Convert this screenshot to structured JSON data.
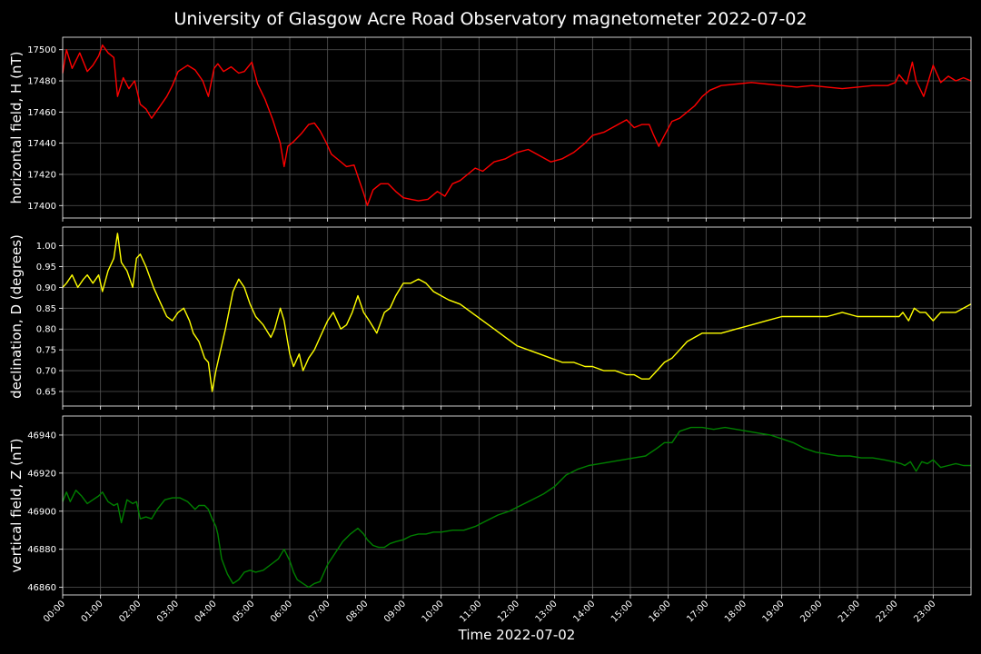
{
  "title": "University of Glasgow Acre Road Observatory magnetometer 2022-07-02",
  "xlabel": "Time 2022-07-02",
  "colors": {
    "background": "#000000",
    "grid": "#555555",
    "H": "#ff0000",
    "D": "#ffff00",
    "Z": "#008000"
  },
  "chart_data": [
    {
      "type": "line",
      "ylabel": "horizontal field, H (nT)",
      "series": [
        {
          "color": "#ff0000",
          "x": [
            0,
            0.1,
            0.25,
            0.45,
            0.65,
            0.8,
            0.95,
            1.05,
            1.2,
            1.35,
            1.45,
            1.6,
            1.75,
            1.9,
            2.05,
            2.2,
            2.35,
            2.55,
            2.75,
            2.9,
            3.05,
            3.3,
            3.5,
            3.7,
            3.85,
            4.0,
            4.1,
            4.25,
            4.45,
            4.65,
            4.8,
            5.0,
            5.15,
            5.35,
            5.55,
            5.75,
            5.85,
            5.95,
            6.1,
            6.3,
            6.5,
            6.65,
            6.8,
            6.95,
            7.1,
            7.3,
            7.5,
            7.7,
            7.85,
            7.95,
            8.05,
            8.2,
            8.4,
            8.6,
            8.8,
            9.0,
            9.2,
            9.4,
            9.65,
            9.9,
            10.1,
            10.3,
            10.5,
            10.7,
            10.9,
            11.1,
            11.4,
            11.7,
            12.0,
            12.3,
            12.6,
            12.9,
            13.2,
            13.5,
            13.8,
            14.0,
            14.3,
            14.6,
            14.9,
            15.1,
            15.3,
            15.5,
            15.6,
            15.75,
            15.9,
            16.1,
            16.3,
            16.5,
            16.7,
            16.9,
            17.1,
            17.4,
            17.8,
            18.2,
            18.6,
            19.0,
            19.4,
            19.8,
            20.2,
            20.6,
            21.0,
            21.4,
            21.8,
            22.0,
            22.1,
            22.3,
            22.45,
            22.55,
            22.75,
            22.85,
            23.0,
            23.2,
            23.4,
            23.6,
            23.8,
            24.0
          ],
          "y": [
            17485,
            17500,
            17488,
            17498,
            17486,
            17490,
            17496,
            17503,
            17498,
            17495,
            17470,
            17482,
            17475,
            17480,
            17465,
            17462,
            17456,
            17463,
            17470,
            17477,
            17486,
            17490,
            17487,
            17480,
            17470,
            17488,
            17491,
            17486,
            17489,
            17485,
            17486,
            17492,
            17478,
            17468,
            17455,
            17440,
            17425,
            17438,
            17441,
            17446,
            17452,
            17453,
            17448,
            17441,
            17433,
            17429,
            17425,
            17426,
            17415,
            17408,
            17400,
            17410,
            17414,
            17414,
            17409,
            17405,
            17404,
            17403,
            17404,
            17409,
            17406,
            17414,
            17416,
            17420,
            17424,
            17422,
            17428,
            17430,
            17434,
            17436,
            17432,
            17428,
            17430,
            17434,
            17440,
            17445,
            17447,
            17451,
            17455,
            17450,
            17452,
            17452,
            17446,
            17438,
            17445,
            17454,
            17456,
            17460,
            17464,
            17470,
            17474,
            17477,
            17478,
            17479,
            17478,
            17477,
            17476,
            17477,
            17476,
            17475,
            17476,
            17477,
            17477,
            17479,
            17484,
            17478,
            17492,
            17480,
            17470,
            17478,
            17490,
            17479,
            17483,
            17480,
            17482,
            17480
          ]
        }
      ],
      "ylim": [
        17392,
        17508
      ],
      "yticks": [
        "17400",
        "17420",
        "17440",
        "17460",
        "17480",
        "17500"
      ],
      "grid": true
    },
    {
      "type": "line",
      "ylabel": "declination, D (degrees)",
      "series": [
        {
          "color": "#ffff00",
          "x": [
            0,
            0.1,
            0.25,
            0.4,
            0.55,
            0.65,
            0.8,
            0.95,
            1.05,
            1.2,
            1.35,
            1.45,
            1.55,
            1.7,
            1.85,
            1.95,
            2.05,
            2.2,
            2.4,
            2.6,
            2.75,
            2.9,
            3.05,
            3.2,
            3.35,
            3.45,
            3.6,
            3.75,
            3.85,
            3.95,
            4.05,
            4.15,
            4.3,
            4.5,
            4.65,
            4.8,
            4.95,
            5.1,
            5.3,
            5.5,
            5.6,
            5.75,
            5.85,
            6.0,
            6.1,
            6.25,
            6.35,
            6.5,
            6.65,
            6.8,
            6.9,
            7.0,
            7.15,
            7.35,
            7.5,
            7.65,
            7.8,
            7.95,
            8.1,
            8.3,
            8.5,
            8.65,
            8.8,
            9.0,
            9.2,
            9.4,
            9.6,
            9.8,
            10.0,
            10.2,
            10.5,
            10.8,
            11.1,
            11.4,
            11.7,
            12.0,
            12.3,
            12.6,
            12.9,
            13.2,
            13.5,
            13.8,
            14.0,
            14.3,
            14.6,
            14.9,
            15.1,
            15.3,
            15.5,
            15.7,
            15.9,
            16.1,
            16.3,
            16.5,
            16.7,
            16.9,
            17.1,
            17.4,
            17.8,
            18.2,
            18.6,
            19.0,
            19.4,
            19.8,
            20.2,
            20.6,
            21.0,
            21.4,
            21.8,
            21.95,
            22.1,
            22.2,
            22.35,
            22.5,
            22.65,
            22.8,
            23.0,
            23.2,
            23.4,
            23.6,
            23.8,
            24.0
          ],
          "y": [
            0.9,
            0.91,
            0.93,
            0.9,
            0.92,
            0.93,
            0.91,
            0.93,
            0.89,
            0.94,
            0.97,
            1.03,
            0.96,
            0.94,
            0.9,
            0.97,
            0.98,
            0.95,
            0.9,
            0.86,
            0.83,
            0.82,
            0.84,
            0.85,
            0.82,
            0.79,
            0.77,
            0.73,
            0.72,
            0.65,
            0.7,
            0.74,
            0.8,
            0.89,
            0.92,
            0.9,
            0.86,
            0.83,
            0.81,
            0.78,
            0.8,
            0.85,
            0.82,
            0.74,
            0.71,
            0.74,
            0.7,
            0.73,
            0.75,
            0.78,
            0.8,
            0.82,
            0.84,
            0.8,
            0.81,
            0.84,
            0.88,
            0.84,
            0.82,
            0.79,
            0.84,
            0.85,
            0.88,
            0.91,
            0.91,
            0.92,
            0.91,
            0.89,
            0.88,
            0.87,
            0.86,
            0.84,
            0.82,
            0.8,
            0.78,
            0.76,
            0.75,
            0.74,
            0.73,
            0.72,
            0.72,
            0.71,
            0.71,
            0.7,
            0.7,
            0.69,
            0.69,
            0.68,
            0.68,
            0.7,
            0.72,
            0.73,
            0.75,
            0.77,
            0.78,
            0.79,
            0.79,
            0.79,
            0.8,
            0.81,
            0.82,
            0.83,
            0.83,
            0.83,
            0.83,
            0.84,
            0.83,
            0.83,
            0.83,
            0.83,
            0.83,
            0.84,
            0.82,
            0.85,
            0.84,
            0.84,
            0.82,
            0.84,
            0.84,
            0.84,
            0.85,
            0.86
          ]
        }
      ],
      "ylim": [
        0.615,
        1.045
      ],
      "yticks": [
        "0.65",
        "0.70",
        "0.75",
        "0.80",
        "0.85",
        "0.90",
        "0.95",
        "1.00"
      ],
      "grid": true
    },
    {
      "type": "line",
      "ylabel": "vertical field, Z (nT)",
      "series": [
        {
          "color": "#008000",
          "x": [
            0,
            0.1,
            0.2,
            0.35,
            0.5,
            0.65,
            0.8,
            0.95,
            1.05,
            1.2,
            1.35,
            1.45,
            1.55,
            1.7,
            1.85,
            1.95,
            2.05,
            2.2,
            2.35,
            2.5,
            2.7,
            2.9,
            3.1,
            3.3,
            3.5,
            3.6,
            3.75,
            3.85,
            3.95,
            4.05,
            4.1,
            4.2,
            4.35,
            4.5,
            4.65,
            4.8,
            4.95,
            5.1,
            5.3,
            5.5,
            5.7,
            5.85,
            6.0,
            6.1,
            6.2,
            6.35,
            6.5,
            6.65,
            6.8,
            7.0,
            7.2,
            7.4,
            7.6,
            7.8,
            7.95,
            8.05,
            8.2,
            8.35,
            8.5,
            8.65,
            8.8,
            9.0,
            9.2,
            9.4,
            9.6,
            9.8,
            10.0,
            10.3,
            10.6,
            10.9,
            11.2,
            11.5,
            11.8,
            12.1,
            12.4,
            12.7,
            13.0,
            13.3,
            13.6,
            13.9,
            14.2,
            14.5,
            14.8,
            15.1,
            15.4,
            15.7,
            15.9,
            16.1,
            16.3,
            16.6,
            16.9,
            17.2,
            17.5,
            17.8,
            18.1,
            18.4,
            18.7,
            19.0,
            19.3,
            19.6,
            19.9,
            20.2,
            20.5,
            20.8,
            21.1,
            21.4,
            21.7,
            21.95,
            22.15,
            22.25,
            22.4,
            22.55,
            22.7,
            22.85,
            23.0,
            23.2,
            23.4,
            23.6,
            23.8,
            24.0
          ],
          "y": [
            46905,
            46910,
            46905,
            46911,
            46908,
            46904,
            46906,
            46908,
            46910,
            46905,
            46903,
            46904,
            46894,
            46906,
            46904,
            46905,
            46896,
            46897,
            46896,
            46901,
            46906,
            46907,
            46907,
            46905,
            46901,
            46903,
            46903,
            46901,
            46896,
            46892,
            46888,
            46875,
            46867,
            46862,
            46864,
            46868,
            46869,
            46868,
            46869,
            46872,
            46875,
            46880,
            46874,
            46868,
            46864,
            46862,
            46860,
            46862,
            46863,
            46872,
            46878,
            46884,
            46888,
            46891,
            46888,
            46885,
            46882,
            46881,
            46881,
            46883,
            46884,
            46885,
            46887,
            46888,
            46888,
            46889,
            46889,
            46890,
            46890,
            46892,
            46895,
            46898,
            46900,
            46903,
            46906,
            46909,
            46913,
            46919,
            46922,
            46924,
            46925,
            46926,
            46927,
            46928,
            46929,
            46933,
            46936,
            46936,
            46942,
            46944,
            46944,
            46943,
            46944,
            46943,
            46942,
            46941,
            46940,
            46938,
            46936,
            46933,
            46931,
            46930,
            46929,
            46929,
            46928,
            46928,
            46927,
            46926,
            46925,
            46924,
            46926,
            46921,
            46926,
            46925,
            46927,
            46923,
            46924,
            46925,
            46924,
            46924
          ]
        }
      ],
      "ylim": [
        46856,
        46950
      ],
      "yticks": [
        "46860",
        "46880",
        "46900",
        "46920",
        "46940"
      ],
      "grid": true
    }
  ],
  "xaxis": {
    "range": [
      0,
      24
    ],
    "ticks": [
      "00:00",
      "01:00",
      "02:00",
      "03:00",
      "04:00",
      "05:00",
      "06:00",
      "07:00",
      "08:00",
      "09:00",
      "10:00",
      "11:00",
      "12:00",
      "13:00",
      "14:00",
      "15:00",
      "16:00",
      "17:00",
      "18:00",
      "19:00",
      "20:00",
      "21:00",
      "22:00",
      "23:00"
    ]
  }
}
